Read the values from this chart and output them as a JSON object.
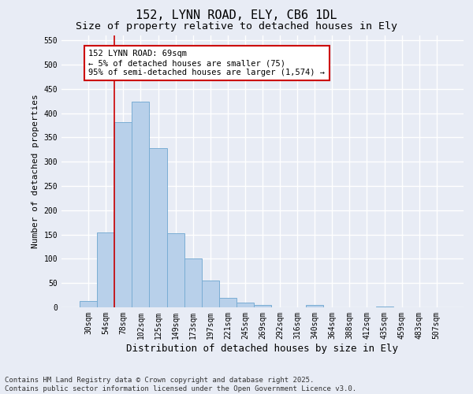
{
  "title": "152, LYNN ROAD, ELY, CB6 1DL",
  "subtitle": "Size of property relative to detached houses in Ely",
  "xlabel": "Distribution of detached houses by size in Ely",
  "ylabel": "Number of detached properties",
  "categories": [
    "30sqm",
    "54sqm",
    "78sqm",
    "102sqm",
    "125sqm",
    "149sqm",
    "173sqm",
    "197sqm",
    "221sqm",
    "245sqm",
    "269sqm",
    "292sqm",
    "316sqm",
    "340sqm",
    "364sqm",
    "388sqm",
    "412sqm",
    "435sqm",
    "459sqm",
    "483sqm",
    "507sqm"
  ],
  "values": [
    13,
    155,
    382,
    423,
    328,
    152,
    101,
    55,
    19,
    10,
    5,
    0,
    0,
    5,
    0,
    0,
    0,
    2,
    0,
    0,
    0
  ],
  "bar_color": "#b8d0ea",
  "bar_edge_color": "#7aadd4",
  "bar_edge_width": 0.7,
  "vline_color": "#cc0000",
  "annotation_box_text": "152 LYNN ROAD: 69sqm\n← 5% of detached houses are smaller (75)\n95% of semi-detached houses are larger (1,574) →",
  "annotation_box_color": "#cc0000",
  "ylim": [
    0,
    560
  ],
  "yticks": [
    0,
    50,
    100,
    150,
    200,
    250,
    300,
    350,
    400,
    450,
    500,
    550
  ],
  "bg_color": "#e8ecf5",
  "plot_bg_color": "#e8ecf5",
  "grid_color": "#ffffff",
  "footer_text": "Contains HM Land Registry data © Crown copyright and database right 2025.\nContains public sector information licensed under the Open Government Licence v3.0.",
  "title_fontsize": 11,
  "subtitle_fontsize": 9.5,
  "xlabel_fontsize": 9,
  "ylabel_fontsize": 8,
  "tick_fontsize": 7,
  "footer_fontsize": 6.5,
  "annot_fontsize": 7.5
}
